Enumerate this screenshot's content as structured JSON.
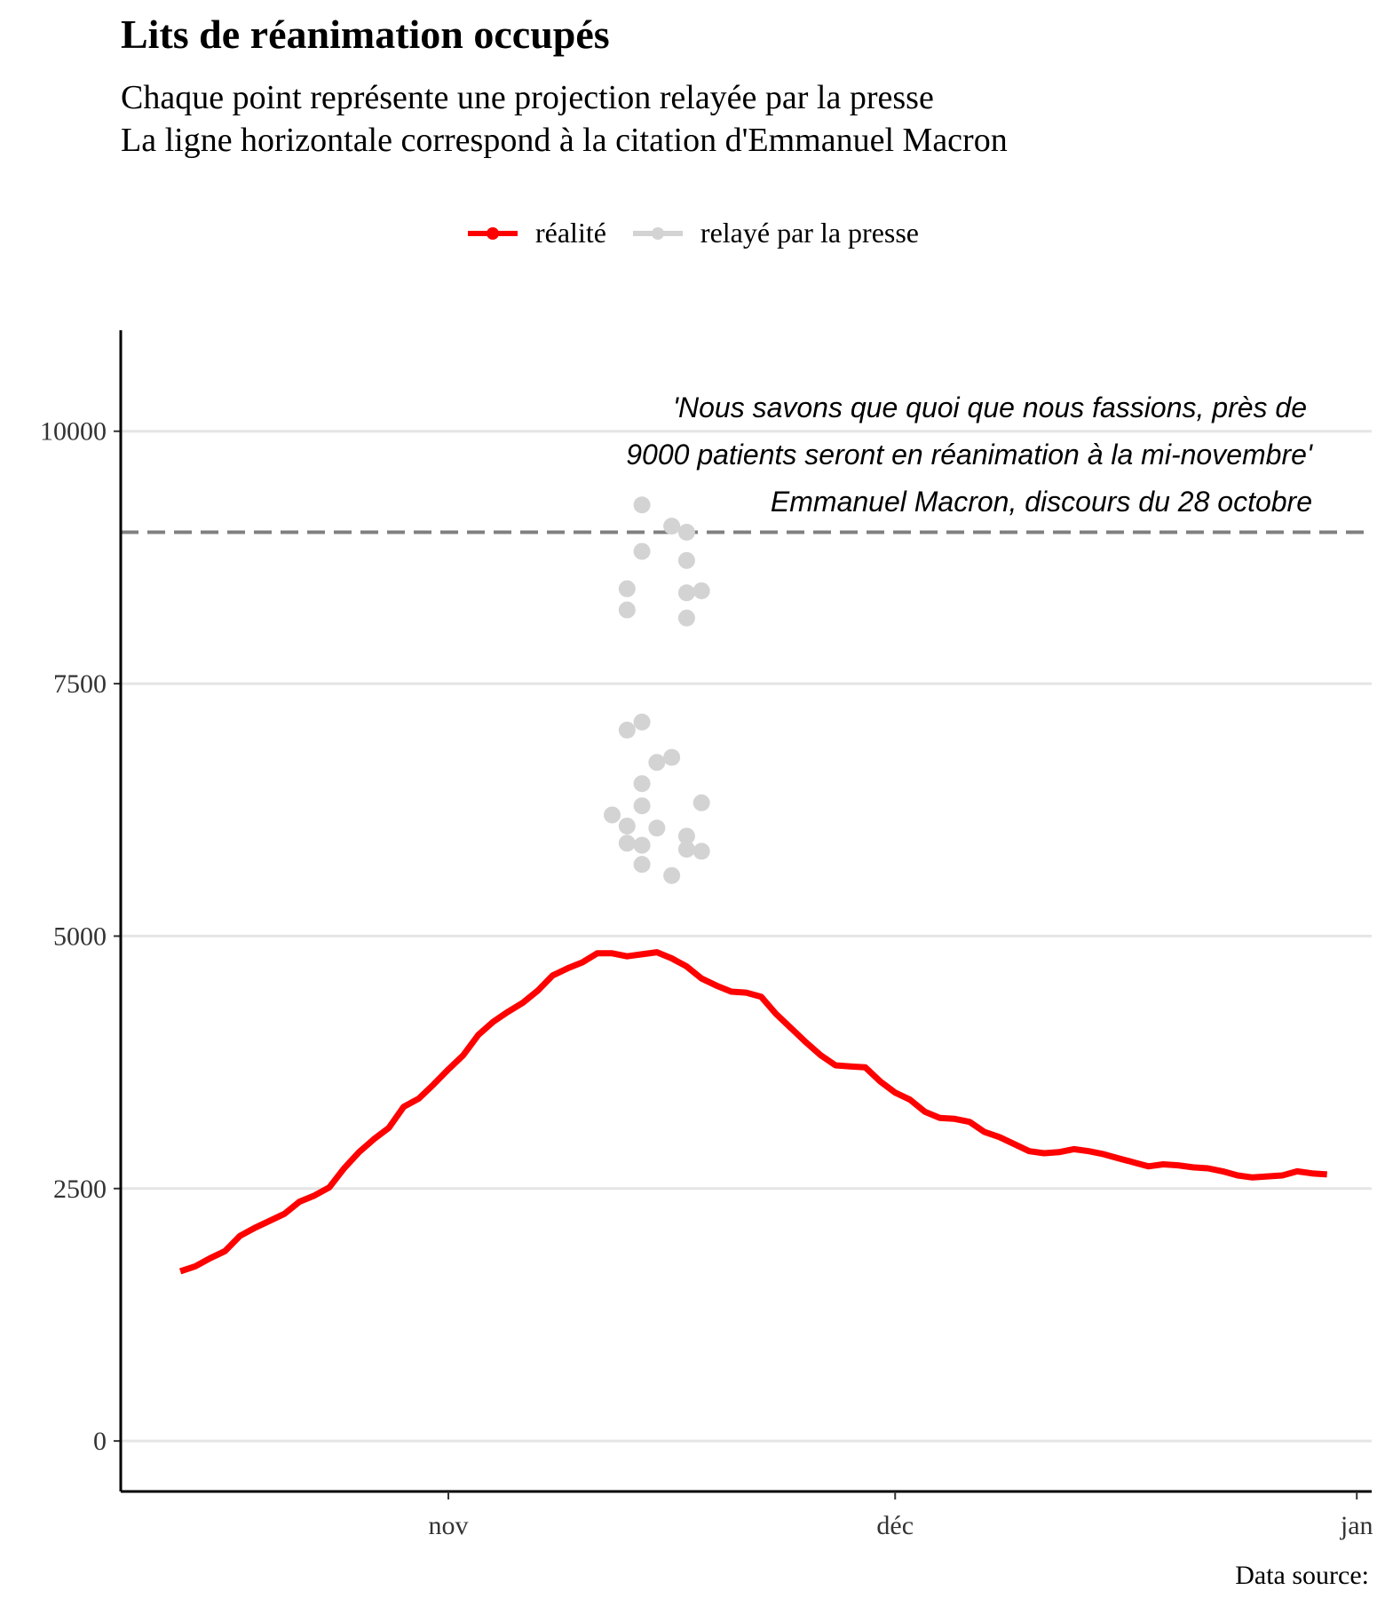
{
  "chart_data": {
    "type": "line",
    "title": "Lits de réanimation occupés",
    "subtitle": [
      "Chaque point représente une projection relayée par la presse",
      "La ligne horizontale correspond à la citation d'Emmanuel Macron"
    ],
    "caption": "Data source:",
    "legend": {
      "placement": "top",
      "entries": [
        "réalité",
        "relayé par la presse"
      ]
    },
    "ylim": [
      -500,
      11000
    ],
    "y_ticks": [
      0,
      2500,
      5000,
      7500,
      10000
    ],
    "x_ticks": [
      {
        "label": "nov",
        "date": "2020-11-01"
      },
      {
        "label": "déc",
        "date": "2020-12-01"
      },
      {
        "label": "jan",
        "date": "2021-01-01"
      }
    ],
    "xlim": [
      "2020-10-10",
      "2021-01-02"
    ],
    "grid": "horizontal major",
    "reference_line": {
      "y": 9000,
      "style": "dashed",
      "color": "#808080"
    },
    "annotation": [
      "'Nous savons que quoi que nous fassions, près de",
      "9000 patients seront en réanimation à la mi-novembre'",
      "Emmanuel Macron, discours du 28 octobre"
    ],
    "series": [
      {
        "name": "réalité",
        "color": "#ff0000",
        "start_date": "2020-10-14",
        "values": [
          1680,
          1730,
          1810,
          1880,
          2030,
          2110,
          2180,
          2250,
          2370,
          2430,
          2510,
          2700,
          2860,
          2990,
          3100,
          3310,
          3390,
          3530,
          3680,
          3820,
          4020,
          4150,
          4250,
          4340,
          4460,
          4610,
          4680,
          4740,
          4830,
          4830,
          4800,
          4820,
          4840,
          4780,
          4700,
          4580,
          4510,
          4450,
          4440,
          4400,
          4230,
          4090,
          3950,
          3820,
          3720,
          3710,
          3700,
          3560,
          3450,
          3380,
          3260,
          3200,
          3190,
          3160,
          3060,
          3010,
          2940,
          2870,
          2850,
          2860,
          2890,
          2870,
          2840,
          2800,
          2760,
          2720,
          2740,
          2730,
          2710,
          2700,
          2670,
          2630,
          2610,
          2620,
          2630,
          2670,
          2650,
          2640
        ]
      },
      {
        "name": "relayé par la presse",
        "color": "#d3d3d3",
        "type": "scatter",
        "points": [
          {
            "x": "2020-11-12",
            "y": 6200
          },
          {
            "x": "2020-11-13",
            "y": 5920
          },
          {
            "x": "2020-11-13",
            "y": 6090
          },
          {
            "x": "2020-11-13",
            "y": 8230
          },
          {
            "x": "2020-11-13",
            "y": 8440
          },
          {
            "x": "2020-11-13",
            "y": 7040
          },
          {
            "x": "2020-11-14",
            "y": 7120
          },
          {
            "x": "2020-11-14",
            "y": 6510
          },
          {
            "x": "2020-11-14",
            "y": 6290
          },
          {
            "x": "2020-11-14",
            "y": 5900
          },
          {
            "x": "2020-11-14",
            "y": 5710
          },
          {
            "x": "2020-11-14",
            "y": 8810
          },
          {
            "x": "2020-11-14",
            "y": 9270
          },
          {
            "x": "2020-11-15",
            "y": 6720
          },
          {
            "x": "2020-11-15",
            "y": 6070
          },
          {
            "x": "2020-11-16",
            "y": 6770
          },
          {
            "x": "2020-11-16",
            "y": 5600
          },
          {
            "x": "2020-11-16",
            "y": 9060
          },
          {
            "x": "2020-11-17",
            "y": 5990
          },
          {
            "x": "2020-11-17",
            "y": 8720
          },
          {
            "x": "2020-11-17",
            "y": 8400
          },
          {
            "x": "2020-11-17",
            "y": 8150
          },
          {
            "x": "2020-11-17",
            "y": 5860
          },
          {
            "x": "2020-11-17",
            "y": 9000
          },
          {
            "x": "2020-11-18",
            "y": 8420
          },
          {
            "x": "2020-11-18",
            "y": 5840
          },
          {
            "x": "2020-11-18",
            "y": 6320
          }
        ]
      }
    ]
  }
}
